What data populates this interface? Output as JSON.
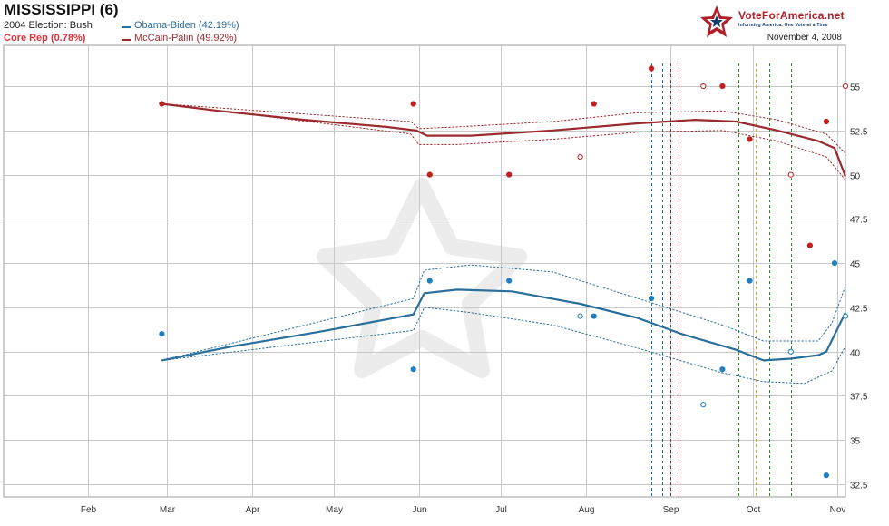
{
  "header": {
    "title": "MISSISSIPPI (6)",
    "election_2004": "2004 Election: Bush",
    "core": "Core Rep (0.78%)",
    "obama_legend": "Obama-Biden (42.19%)",
    "mccain_legend": "McCain-Palin (49.92%)",
    "date": "November 4, 2008"
  },
  "logo": {
    "text": "VoteForAmerica.net",
    "tagline": "Informing America, One Vote at a Time"
  },
  "colors": {
    "obama": "#2a6e9b",
    "mccain": "#9b2a2e",
    "obama_dot": "#1f7fc1",
    "mccain_dot": "#c21f1f",
    "core": "#e0303a",
    "grid": "#c8c8c8"
  },
  "chart_data": {
    "type": "line",
    "title": "MISSISSIPPI (6)",
    "xlabel": "",
    "ylabel": "",
    "x_range": [
      "2008-02-01",
      "2008-11-04"
    ],
    "ylim": [
      31.5,
      57.5
    ],
    "grid": true,
    "y_ticks": [
      32.5,
      35,
      37.5,
      40,
      42.5,
      45,
      47.5,
      50,
      52.5,
      55
    ],
    "x_ticks": [
      {
        "label": "Feb",
        "date": "2008-02-01"
      },
      {
        "label": "Mar",
        "date": "2008-03-01"
      },
      {
        "label": "Apr",
        "date": "2008-04-01"
      },
      {
        "label": "May",
        "date": "2008-05-01"
      },
      {
        "label": "Jun",
        "date": "2008-06-01"
      },
      {
        "label": "Jul",
        "date": "2008-07-01"
      },
      {
        "label": "Aug",
        "date": "2008-08-01"
      },
      {
        "label": "Sep",
        "date": "2008-09-01"
      },
      {
        "label": "Oct",
        "date": "2008-10-01"
      },
      {
        "label": "Nov",
        "date": "2008-11-01"
      }
    ],
    "events": [
      {
        "date": "2008-08-25",
        "color": "#2a6e9b"
      },
      {
        "date": "2008-08-29",
        "color": "#2a6e9b"
      },
      {
        "date": "2008-09-01",
        "color": "#9b2a2e"
      },
      {
        "date": "2008-09-04",
        "color": "#9b2a2e"
      },
      {
        "date": "2008-09-26",
        "color": "#2a8a2a"
      },
      {
        "date": "2008-10-02",
        "color": "#e0a020"
      },
      {
        "date": "2008-10-07",
        "color": "#2a8a2a"
      },
      {
        "date": "2008-10-15",
        "color": "#2a8a2a"
      }
    ],
    "series": [
      {
        "name": "McCain-Palin",
        "color": "#9b2a2e",
        "trend": [
          [
            "2008-02-28",
            54.0
          ],
          [
            "2008-03-20",
            53.6
          ],
          [
            "2008-04-20",
            53.1
          ],
          [
            "2008-05-20",
            52.7
          ],
          [
            "2008-05-31",
            52.5
          ],
          [
            "2008-06-04",
            52.2
          ],
          [
            "2008-06-20",
            52.2
          ],
          [
            "2008-07-20",
            52.5
          ],
          [
            "2008-08-20",
            52.9
          ],
          [
            "2008-09-10",
            53.1
          ],
          [
            "2008-09-25",
            53.0
          ],
          [
            "2008-10-10",
            52.5
          ],
          [
            "2008-10-25",
            51.9
          ],
          [
            "2008-10-31",
            51.5
          ],
          [
            "2008-11-04",
            49.9
          ]
        ],
        "upper": [
          [
            "2008-02-28",
            54.0
          ],
          [
            "2008-05-29",
            53.0
          ],
          [
            "2008-06-01",
            52.6
          ],
          [
            "2008-06-15",
            52.7
          ],
          [
            "2008-07-20",
            53.0
          ],
          [
            "2008-08-20",
            53.5
          ],
          [
            "2008-09-20",
            53.6
          ],
          [
            "2008-10-10",
            53.1
          ],
          [
            "2008-10-28",
            52.3
          ],
          [
            "2008-11-04",
            51.2
          ]
        ],
        "lower": [
          [
            "2008-02-28",
            54.0
          ],
          [
            "2008-05-29",
            52.3
          ],
          [
            "2008-06-01",
            51.7
          ],
          [
            "2008-06-15",
            51.7
          ],
          [
            "2008-07-20",
            52.0
          ],
          [
            "2008-08-20",
            52.4
          ],
          [
            "2008-09-20",
            52.5
          ],
          [
            "2008-10-10",
            51.9
          ],
          [
            "2008-10-28",
            51.0
          ],
          [
            "2008-11-04",
            49.7
          ]
        ],
        "polls": [
          {
            "date": "2008-02-28",
            "value": 54.0,
            "filled": true
          },
          {
            "date": "2008-05-30",
            "value": 54.0,
            "filled": true
          },
          {
            "date": "2008-06-05",
            "value": 50.0,
            "filled": true
          },
          {
            "date": "2008-07-04",
            "value": 50.0,
            "filled": true
          },
          {
            "date": "2008-07-30",
            "value": 51.0,
            "filled": false
          },
          {
            "date": "2008-08-04",
            "value": 54.0,
            "filled": true
          },
          {
            "date": "2008-08-25",
            "value": 56.0,
            "filled": true
          },
          {
            "date": "2008-09-13",
            "value": 55.0,
            "filled": false
          },
          {
            "date": "2008-09-20",
            "value": 55.0,
            "filled": true
          },
          {
            "date": "2008-09-30",
            "value": 52.0,
            "filled": true
          },
          {
            "date": "2008-10-15",
            "value": 50.0,
            "filled": false
          },
          {
            "date": "2008-10-22",
            "value": 46.0,
            "filled": true
          },
          {
            "date": "2008-10-28",
            "value": 53.0,
            "filled": true
          },
          {
            "date": "2008-11-04",
            "value": 55.0,
            "filled": false
          }
        ]
      },
      {
        "name": "Obama-Biden",
        "color": "#2a6e9b",
        "trend": [
          [
            "2008-02-28",
            39.5
          ],
          [
            "2008-03-25",
            40.3
          ],
          [
            "2008-04-25",
            41.1
          ],
          [
            "2008-05-30",
            42.1
          ],
          [
            "2008-06-03",
            43.3
          ],
          [
            "2008-06-15",
            43.5
          ],
          [
            "2008-07-05",
            43.4
          ],
          [
            "2008-07-30",
            42.7
          ],
          [
            "2008-08-20",
            41.9
          ],
          [
            "2008-09-05",
            41.0
          ],
          [
            "2008-09-25",
            40.1
          ],
          [
            "2008-10-05",
            39.5
          ],
          [
            "2008-10-15",
            39.6
          ],
          [
            "2008-10-25",
            39.8
          ],
          [
            "2008-10-28",
            40.0
          ],
          [
            "2008-11-04",
            42.2
          ]
        ],
        "upper": [
          [
            "2008-02-28",
            39.5
          ],
          [
            "2008-05-30",
            43.0
          ],
          [
            "2008-06-03",
            44.6
          ],
          [
            "2008-06-20",
            44.9
          ],
          [
            "2008-07-20",
            44.5
          ],
          [
            "2008-08-20",
            43.0
          ],
          [
            "2008-09-20",
            41.5
          ],
          [
            "2008-10-05",
            40.6
          ],
          [
            "2008-10-25",
            40.6
          ],
          [
            "2008-10-30",
            41.6
          ],
          [
            "2008-11-04",
            43.7
          ]
        ],
        "lower": [
          [
            "2008-02-28",
            39.5
          ],
          [
            "2008-05-30",
            41.2
          ],
          [
            "2008-06-03",
            42.5
          ],
          [
            "2008-06-20",
            42.2
          ],
          [
            "2008-07-20",
            41.5
          ],
          [
            "2008-08-20",
            40.2
          ],
          [
            "2008-09-20",
            38.8
          ],
          [
            "2008-10-05",
            38.3
          ],
          [
            "2008-10-20",
            38.2
          ],
          [
            "2008-10-30",
            38.9
          ],
          [
            "2008-11-04",
            40.3
          ]
        ],
        "polls": [
          {
            "date": "2008-02-28",
            "value": 41.0,
            "filled": true
          },
          {
            "date": "2008-05-30",
            "value": 39.0,
            "filled": true
          },
          {
            "date": "2008-06-05",
            "value": 44.0,
            "filled": true
          },
          {
            "date": "2008-07-04",
            "value": 44.0,
            "filled": true
          },
          {
            "date": "2008-07-30",
            "value": 42.0,
            "filled": false
          },
          {
            "date": "2008-08-04",
            "value": 42.0,
            "filled": true
          },
          {
            "date": "2008-08-25",
            "value": 43.0,
            "filled": true
          },
          {
            "date": "2008-09-13",
            "value": 37.0,
            "filled": false
          },
          {
            "date": "2008-09-20",
            "value": 39.0,
            "filled": true
          },
          {
            "date": "2008-09-30",
            "value": 44.0,
            "filled": true
          },
          {
            "date": "2008-10-15",
            "value": 40.0,
            "filled": false
          },
          {
            "date": "2008-10-28",
            "value": 33.0,
            "filled": true
          },
          {
            "date": "2008-10-31",
            "value": 45.0,
            "filled": true
          },
          {
            "date": "2008-11-04",
            "value": 42.0,
            "filled": false
          }
        ]
      }
    ]
  }
}
